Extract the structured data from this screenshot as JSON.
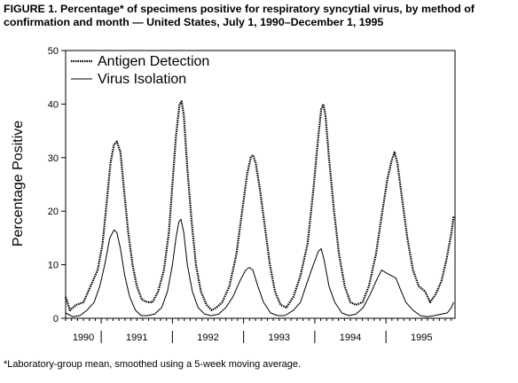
{
  "figure": {
    "title": "FIGURE 1. Percentage* of specimens positive for respiratory syncytial virus, by method of confirmation and month — United States, July 1, 1990–December 1, 1995",
    "footnote": "*Laboratory-group mean, smoothed using a 5-week moving average."
  },
  "chart_data": {
    "type": "line",
    "title": "",
    "xlabel": "",
    "ylabel": "Percentage Positive",
    "xlim": [
      1990.5,
      1995.97
    ],
    "ylim": [
      0,
      50
    ],
    "yticks": [
      0,
      10,
      20,
      30,
      40,
      50
    ],
    "xtick_labels": [
      "1990",
      "1991",
      "1992",
      "1993",
      "1994",
      "1995"
    ],
    "grid": false,
    "legend_position": "top-left",
    "series": [
      {
        "name": "Antigen Detection",
        "color": "#000000",
        "style": "dotted-thick",
        "points": [
          [
            1990.5,
            4.0
          ],
          [
            1990.56,
            1.5
          ],
          [
            1990.65,
            2.5
          ],
          [
            1990.75,
            3.0
          ],
          [
            1990.85,
            6.0
          ],
          [
            1990.95,
            9.0
          ],
          [
            1991.02,
            14.0
          ],
          [
            1991.08,
            22.0
          ],
          [
            1991.13,
            29.0
          ],
          [
            1991.18,
            32.5
          ],
          [
            1991.22,
            33.0
          ],
          [
            1991.27,
            31.0
          ],
          [
            1991.32,
            24.0
          ],
          [
            1991.38,
            16.0
          ],
          [
            1991.44,
            10.0
          ],
          [
            1991.5,
            6.0
          ],
          [
            1991.57,
            3.5
          ],
          [
            1991.65,
            3.0
          ],
          [
            1991.72,
            3.0
          ],
          [
            1991.8,
            5.0
          ],
          [
            1991.88,
            9.0
          ],
          [
            1991.95,
            16.0
          ],
          [
            1992.0,
            25.0
          ],
          [
            1992.05,
            34.0
          ],
          [
            1992.1,
            40.0
          ],
          [
            1992.13,
            40.5
          ],
          [
            1992.16,
            38.0
          ],
          [
            1992.21,
            28.0
          ],
          [
            1992.27,
            18.0
          ],
          [
            1992.33,
            10.0
          ],
          [
            1992.4,
            5.0
          ],
          [
            1992.48,
            2.5
          ],
          [
            1992.55,
            1.5
          ],
          [
            1992.62,
            2.0
          ],
          [
            1992.7,
            3.0
          ],
          [
            1992.8,
            6.0
          ],
          [
            1992.9,
            12.0
          ],
          [
            1992.98,
            20.0
          ],
          [
            1993.05,
            27.0
          ],
          [
            1993.1,
            30.0
          ],
          [
            1993.13,
            30.5
          ],
          [
            1993.17,
            29.0
          ],
          [
            1993.23,
            24.0
          ],
          [
            1993.3,
            17.0
          ],
          [
            1993.37,
            10.0
          ],
          [
            1993.44,
            5.0
          ],
          [
            1993.52,
            2.5
          ],
          [
            1993.6,
            2.0
          ],
          [
            1993.7,
            4.0
          ],
          [
            1993.8,
            8.0
          ],
          [
            1993.9,
            14.0
          ],
          [
            1993.98,
            24.0
          ],
          [
            1994.05,
            34.0
          ],
          [
            1994.09,
            39.0
          ],
          [
            1994.12,
            40.0
          ],
          [
            1994.15,
            38.0
          ],
          [
            1994.2,
            30.0
          ],
          [
            1994.27,
            20.0
          ],
          [
            1994.34,
            12.0
          ],
          [
            1994.42,
            6.0
          ],
          [
            1994.5,
            3.0
          ],
          [
            1994.58,
            2.5
          ],
          [
            1994.67,
            3.0
          ],
          [
            1994.76,
            6.0
          ],
          [
            1994.86,
            12.0
          ],
          [
            1994.95,
            20.0
          ],
          [
            1995.02,
            26.0
          ],
          [
            1995.08,
            29.5
          ],
          [
            1995.12,
            31.0
          ],
          [
            1995.16,
            29.0
          ],
          [
            1995.22,
            23.0
          ],
          [
            1995.3,
            15.0
          ],
          [
            1995.38,
            9.0
          ],
          [
            1995.46,
            6.0
          ],
          [
            1995.55,
            5.0
          ],
          [
            1995.62,
            3.0
          ],
          [
            1995.7,
            4.5
          ],
          [
            1995.78,
            7.0
          ],
          [
            1995.85,
            11.0
          ],
          [
            1995.92,
            16.0
          ],
          [
            1995.95,
            19.0
          ]
        ]
      },
      {
        "name": "Virus Isolation",
        "color": "#000000",
        "style": "solid",
        "points": [
          [
            1990.5,
            1.0
          ],
          [
            1990.6,
            0.3
          ],
          [
            1990.7,
            0.5
          ],
          [
            1990.8,
            1.5
          ],
          [
            1990.9,
            3.0
          ],
          [
            1990.98,
            6.0
          ],
          [
            1991.05,
            10.0
          ],
          [
            1991.12,
            15.0
          ],
          [
            1991.18,
            16.5
          ],
          [
            1991.22,
            16.0
          ],
          [
            1991.27,
            13.0
          ],
          [
            1991.33,
            8.0
          ],
          [
            1991.4,
            4.0
          ],
          [
            1991.48,
            1.5
          ],
          [
            1991.56,
            0.5
          ],
          [
            1991.65,
            0.5
          ],
          [
            1991.75,
            0.8
          ],
          [
            1991.85,
            2.0
          ],
          [
            1991.93,
            5.0
          ],
          [
            1992.0,
            10.0
          ],
          [
            1992.05,
            15.0
          ],
          [
            1992.09,
            18.0
          ],
          [
            1992.12,
            18.5
          ],
          [
            1992.16,
            16.0
          ],
          [
            1992.21,
            10.0
          ],
          [
            1992.28,
            5.0
          ],
          [
            1992.36,
            2.0
          ],
          [
            1992.45,
            0.8
          ],
          [
            1992.55,
            0.5
          ],
          [
            1992.65,
            0.8
          ],
          [
            1992.75,
            2.0
          ],
          [
            1992.85,
            4.0
          ],
          [
            1992.95,
            7.0
          ],
          [
            1993.03,
            9.0
          ],
          [
            1993.08,
            9.5
          ],
          [
            1993.13,
            9.0
          ],
          [
            1993.2,
            6.0
          ],
          [
            1993.28,
            3.0
          ],
          [
            1993.38,
            1.0
          ],
          [
            1993.48,
            0.5
          ],
          [
            1993.58,
            0.5
          ],
          [
            1993.7,
            1.5
          ],
          [
            1993.8,
            3.0
          ],
          [
            1993.9,
            7.0
          ],
          [
            1993.98,
            10.0
          ],
          [
            1994.05,
            12.5
          ],
          [
            1994.09,
            13.0
          ],
          [
            1994.13,
            11.0
          ],
          [
            1994.2,
            6.0
          ],
          [
            1994.28,
            3.0
          ],
          [
            1994.38,
            1.0
          ],
          [
            1994.48,
            0.5
          ],
          [
            1994.58,
            0.8
          ],
          [
            1994.68,
            2.0
          ],
          [
            1994.78,
            4.5
          ],
          [
            1994.88,
            7.5
          ],
          [
            1994.94,
            9.0
          ],
          [
            1995.0,
            8.5
          ],
          [
            1995.07,
            8.0
          ],
          [
            1995.14,
            7.5
          ],
          [
            1995.2,
            5.5
          ],
          [
            1995.28,
            3.0
          ],
          [
            1995.38,
            1.5
          ],
          [
            1995.48,
            0.5
          ],
          [
            1995.58,
            0.3
          ],
          [
            1995.68,
            0.5
          ],
          [
            1995.78,
            0.8
          ],
          [
            1995.86,
            1.0
          ],
          [
            1995.92,
            2.0
          ],
          [
            1995.95,
            3.0
          ]
        ]
      }
    ]
  }
}
